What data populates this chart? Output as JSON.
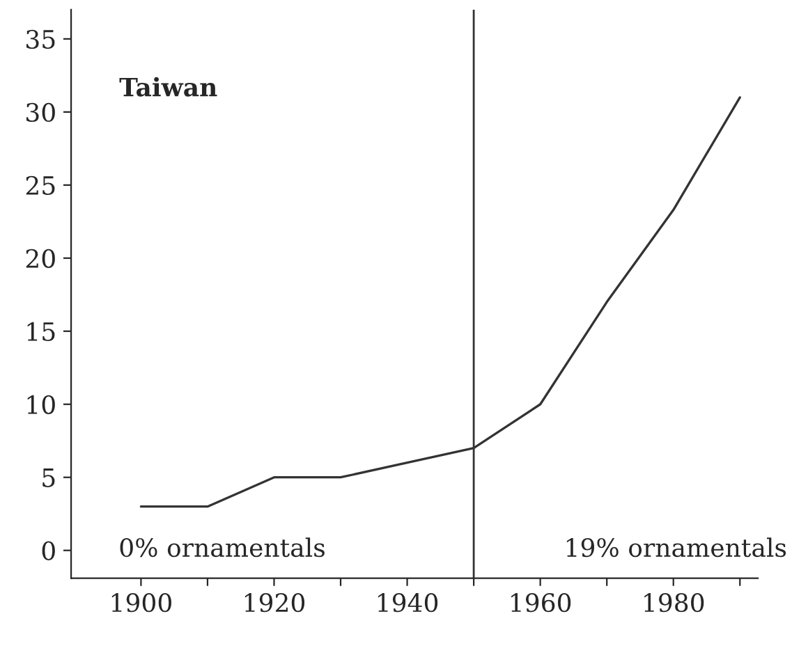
{
  "chart_data": {
    "type": "line",
    "title": "Taiwan",
    "x": [
      1900,
      1910,
      1920,
      1930,
      1940,
      1950,
      1960,
      1970,
      1980,
      1990
    ],
    "series": [
      {
        "color": "#333333",
        "values": [
          3,
          3,
          5,
          5,
          6,
          7,
          10,
          17,
          23.3,
          31
        ]
      }
    ],
    "xlim": [
      1889.5,
      1992.7
    ],
    "xticks": [
      1900,
      {
        "value": 1910,
        "label": null
      },
      1920,
      {
        "value": 1930,
        "label": null
      },
      1940,
      {
        "value": 1950,
        "label": null
      },
      1960,
      {
        "value": 1970,
        "label": null
      },
      1980,
      {
        "value": 1990,
        "label": null
      }
    ],
    "ylim": [
      -1.9,
      37
    ],
    "yticks": [
      0,
      5,
      10,
      15,
      20,
      25,
      30,
      35
    ],
    "ref_lines": [
      {
        "axis": "x",
        "value": 1950,
        "label": null,
        "color": "#333333"
      }
    ],
    "annotations": [
      "0% ornamentals",
      "19% ornamentals"
    ],
    "grid": false,
    "legend": false,
    "marker": "none",
    "line_style": "solid"
  }
}
